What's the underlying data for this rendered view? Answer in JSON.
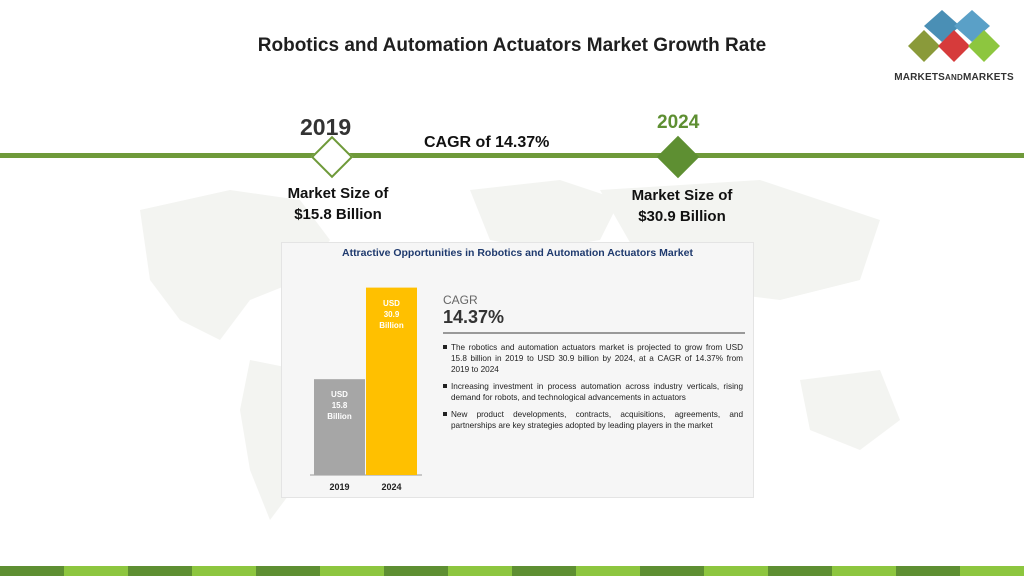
{
  "title": "Robotics and Automation Actuators Market Growth Rate",
  "logo": {
    "text_main": "MARKETS",
    "text_and": "AND",
    "text_end": "MARKETS"
  },
  "timeline": {
    "start_year": "2019",
    "end_year": "2024",
    "cagr_text": "CAGR of 14.37%",
    "start_size_line1": "Market Size of",
    "start_size_line2": "$15.8 Billion",
    "end_size_line1": "Market Size of",
    "end_size_line2": "$30.9 Billion"
  },
  "panel": {
    "title": "Attractive Opportunities in Robotics and Automation Actuators Market",
    "cagr_label": "CAGR",
    "cagr_value": "14.37%",
    "bullets": [
      "The robotics and automation actuators market is projected to grow from USD 15.8 billion in 2019 to USD 30.9 billion by 2024, at a CAGR of 14.37% from 2019 to 2024",
      "Increasing investment in process automation across industry verticals, rising demand for robots, and technological advancements in actuators",
      "New product developments, contracts, acquisitions, agreements, and partnerships are key strategies adopted by leading players in the market"
    ]
  },
  "colors": {
    "green_dark": "#5e8f32",
    "green_light": "#8dc63f",
    "bar_2019": "#a6a6a6",
    "bar_2024": "#ffc000"
  },
  "chart_data": {
    "type": "bar",
    "categories": [
      "2019",
      "2024"
    ],
    "values": [
      15.8,
      30.9
    ],
    "bar_labels": [
      [
        "USD",
        "15.8",
        "Billion"
      ],
      [
        "USD",
        "30.9",
        "Billion"
      ]
    ],
    "title": "",
    "xlabel": "",
    "ylabel": "",
    "ylim": [
      0,
      31
    ]
  }
}
